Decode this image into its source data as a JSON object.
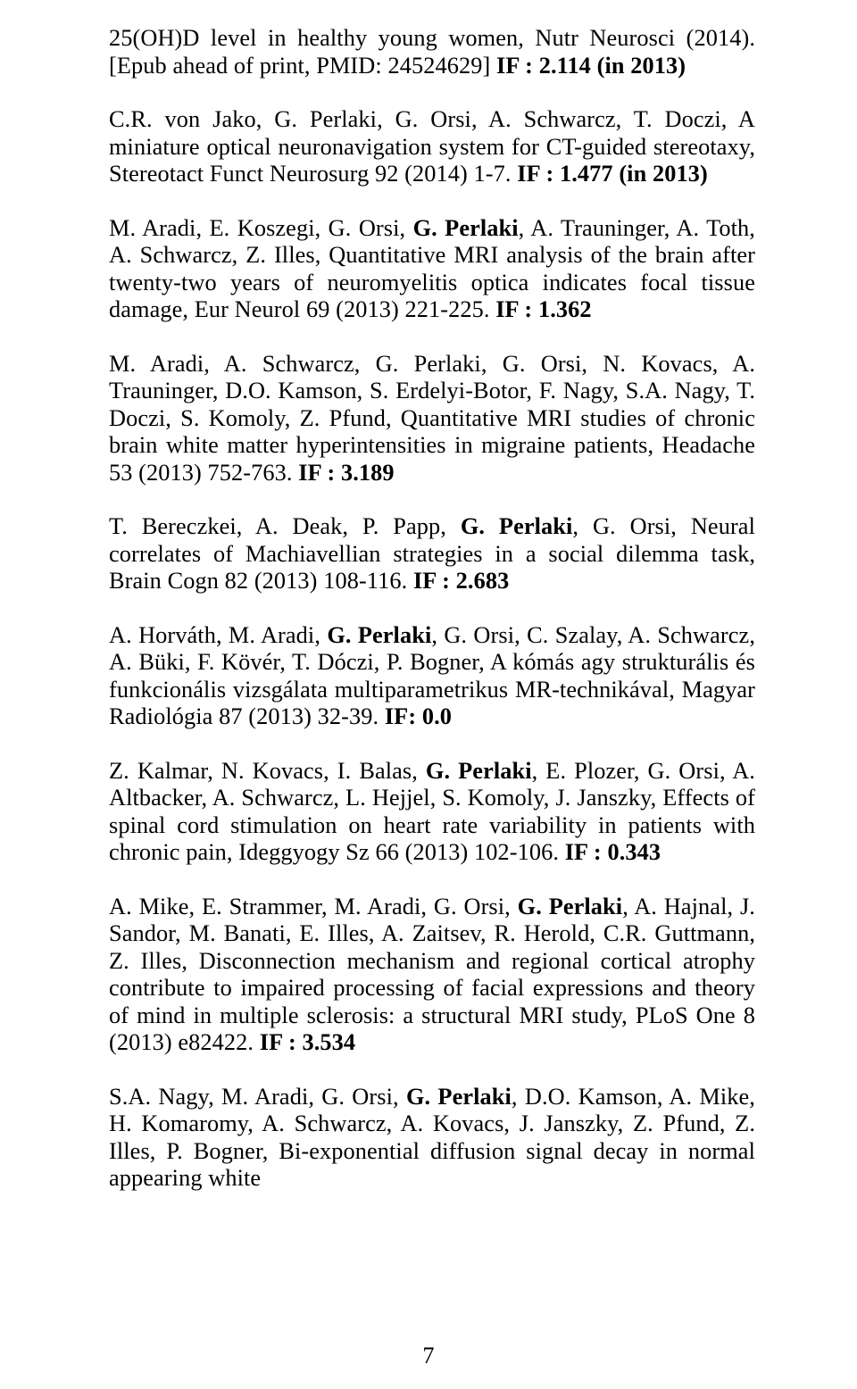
{
  "paragraphs": [
    "25(OH)D level in healthy young women, Nutr Neurosci (2014). [Epub ahead of print, PMID: 24524629] <b>IF : 2.114 (in 2013)</b>",
    "C.R. von Jako, G. Perlaki, G. Orsi, A. Schwarcz, T. Doczi, A miniature optical neuronavigation system for CT-guided stereotaxy, Stereotact Funct Neurosurg 92 (2014) 1-7. <b>IF : 1.477 (in 2013)</b>",
    "M. Aradi, E. Koszegi, G. Orsi, <b>G. Perlaki</b>, A. Trauninger, A. Toth, A. Schwarcz, Z. Illes, Quantitative MRI analysis of the brain after twenty-two years of neuromyelitis optica indicates focal tissue damage, Eur Neurol 69 (2013) 221-225. <b>IF : 1.362</b>",
    "M. Aradi, A. Schwarcz, G. Perlaki, G. Orsi, N. Kovacs, A. Trauninger, D.O. Kamson, S. Erdelyi-Botor, F. Nagy, S.A. Nagy, T. Doczi, S. Komoly, Z. Pfund, Quantitative MRI studies of chronic brain white matter hyperintensities in migraine patients, Headache 53 (2013) 752-763. <b>IF : 3.189</b>",
    "T. Bereczkei, A. Deak, P. Papp, <b>G. Perlaki</b>, G. Orsi, Neural correlates of Machiavellian strategies in a social dilemma task, Brain Cogn 82 (2013) 108-116. <b>IF : 2.683</b>",
    "A. Horváth, M. Aradi, <b>G. Perlaki</b>, G. Orsi, C. Szalay, A. Schwarcz, A. Büki, F. Kövér, T. Dóczi, P. Bogner, A kómás agy strukturális és funkcionális vizsgálata multiparametrikus MR-technikával, Magyar Radiológia 87 (2013) 32-39. <b>IF: 0.0</b>",
    "Z. Kalmar, N. Kovacs, I. Balas, <b>G. Perlaki</b>, E. Plozer, G. Orsi, A. Altbacker, A. Schwarcz, L. Hejjel, S. Komoly, J. Janszky, Effects of spinal cord stimulation on heart rate variability in patients with chronic pain, Ideggyogy Sz 66 (2013) 102-106. <b>IF : 0.343</b>",
    "A. Mike, E. Strammer, M. Aradi, G. Orsi, <b>G. Perlaki</b>, A. Hajnal, J. Sandor, M. Banati, E. Illes, A. Zaitsev, R. Herold, C.R. Guttmann, Z. Illes, Disconnection mechanism and regional cortical atrophy contribute to impaired processing of facial expressions and theory of mind in multiple sclerosis: a structural MRI study, PLoS One 8 (2013) e82422. <b>IF : 3.534</b>",
    "S.A. Nagy, M. Aradi, G. Orsi, <b>G. Perlaki</b>, D.O. Kamson, A. Mike, H. Komaromy, A. Schwarcz, A. Kovacs, J. Janszky, Z. Pfund, Z. Illes, P. Bogner, Bi-exponential diffusion signal decay in normal appearing white"
  ],
  "pageNumber": "7"
}
